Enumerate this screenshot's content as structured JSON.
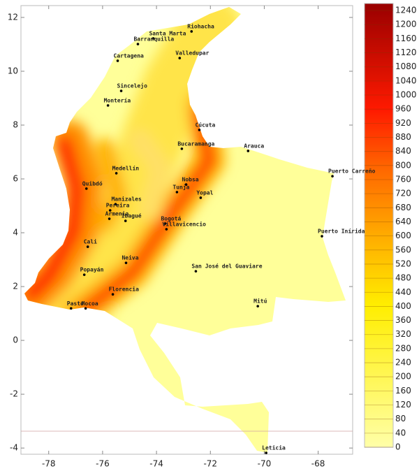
{
  "chart_data": {
    "type": "map",
    "xlim": [
      -79.03,
      -66.72
    ],
    "ylim": [
      -4.23,
      12.44
    ],
    "xticks": [
      -78,
      -76,
      -74,
      -72,
      -70,
      -68
    ],
    "yticks": [
      -4,
      -2,
      0,
      2,
      4,
      6,
      8,
      10,
      12
    ],
    "colorbar": {
      "lim": [
        0,
        1260
      ],
      "ticks": [
        0,
        40,
        80,
        120,
        160,
        200,
        240,
        280,
        320,
        360,
        400,
        440,
        480,
        520,
        560,
        600,
        640,
        680,
        720,
        760,
        800,
        840,
        880,
        920,
        960,
        1000,
        1040,
        1080,
        1120,
        1160,
        1200,
        1240
      ]
    },
    "cities": [
      {
        "name": "Riohacha",
        "lon": -72.7,
        "lat": 11.48
      },
      {
        "name": "Santa Marta",
        "lon": -74.12,
        "lat": 11.22
      },
      {
        "name": "Barranquilla",
        "lon": -74.69,
        "lat": 11.01
      },
      {
        "name": "Cartagena",
        "lon": -75.44,
        "lat": 10.39
      },
      {
        "name": "Valledupar",
        "lon": -73.14,
        "lat": 10.49
      },
      {
        "name": "Sincelejo",
        "lon": -75.31,
        "lat": 9.27
      },
      {
        "name": "Montería",
        "lon": -75.8,
        "lat": 8.73
      },
      {
        "name": "Cúcuta",
        "lon": -72.41,
        "lat": 7.82
      },
      {
        "name": "Bucaramanga",
        "lon": -73.06,
        "lat": 7.12
      },
      {
        "name": "Arauca",
        "lon": -70.6,
        "lat": 7.04
      },
      {
        "name": "Medellín",
        "lon": -75.49,
        "lat": 6.21
      },
      {
        "name": "Quibdó",
        "lon": -76.6,
        "lat": 5.64
      },
      {
        "name": "Puerto Carreño",
        "lon": -67.47,
        "lat": 6.1
      },
      {
        "name": "Nobsa",
        "lon": -72.9,
        "lat": 5.79
      },
      {
        "name": "Tunja",
        "lon": -73.24,
        "lat": 5.51
      },
      {
        "name": "Yopal",
        "lon": -72.36,
        "lat": 5.3
      },
      {
        "name": "Manizales",
        "lon": -75.52,
        "lat": 5.06
      },
      {
        "name": "Pereira",
        "lon": -75.72,
        "lat": 4.83
      },
      {
        "name": "Armenia",
        "lon": -75.75,
        "lat": 4.52
      },
      {
        "name": "Ibagué",
        "lon": -75.15,
        "lat": 4.44
      },
      {
        "name": "Bogotá",
        "lon": -73.68,
        "lat": 4.34
      },
      {
        "name": "Villavicencio",
        "lon": -73.63,
        "lat": 4.13
      },
      {
        "name": "Puerto Inírida",
        "lon": -67.86,
        "lat": 3.87
      },
      {
        "name": "Cali",
        "lon": -76.55,
        "lat": 3.48
      },
      {
        "name": "Neiva",
        "lon": -75.13,
        "lat": 2.88
      },
      {
        "name": "San José del Guaviare",
        "lon": -72.54,
        "lat": 2.57
      },
      {
        "name": "Popayán",
        "lon": -76.68,
        "lat": 2.44
      },
      {
        "name": "Florencia",
        "lon": -75.62,
        "lat": 1.71
      },
      {
        "name": "Mitú",
        "lon": -70.24,
        "lat": 1.27
      },
      {
        "name": "Pasto",
        "lon": -77.17,
        "lat": 1.19
      },
      {
        "name": "Mocoa",
        "lon": -76.63,
        "lat": 1.19
      },
      {
        "name": "Leticia",
        "lon": -69.93,
        "lat": -4.18
      }
    ]
  }
}
